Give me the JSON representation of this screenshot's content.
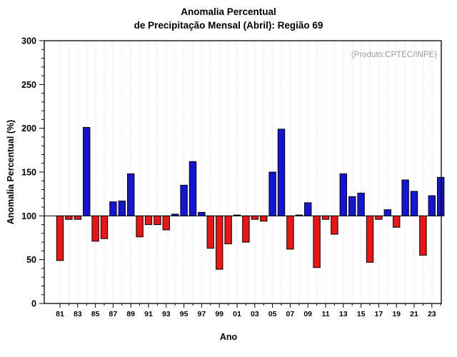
{
  "title": {
    "line1": "Anomalia Percentual",
    "line2": "de Precipitação Mensal (Abril): Região 69"
  },
  "annotation": "(Produto:CPTEC/INPE)",
  "chart_data": {
    "type": "bar",
    "title": "Anomalia Percentual de Precipitação Mensal (Abril): Região 69",
    "xlabel": "Ano",
    "ylabel": "Anomalia Percentual (%)",
    "ylim": [
      0,
      300
    ],
    "yticks": [
      0,
      50,
      100,
      150,
      200,
      250,
      300
    ],
    "y_minor_step": 10,
    "baseline": 100,
    "grid": "vertical-dotted",
    "x_ticks": [
      "81",
      "83",
      "85",
      "87",
      "89",
      "91",
      "93",
      "95",
      "97",
      "99",
      "01",
      "03",
      "05",
      "07",
      "09",
      "11",
      "13",
      "15",
      "17",
      "19",
      "21",
      "23"
    ],
    "years": [
      1981,
      1982,
      1983,
      1984,
      1985,
      1986,
      1987,
      1988,
      1989,
      1990,
      1991,
      1992,
      1993,
      1994,
      1995,
      1996,
      1997,
      1998,
      1999,
      2000,
      2001,
      2002,
      2003,
      2004,
      2005,
      2006,
      2007,
      2008,
      2009,
      2010,
      2011,
      2012,
      2013,
      2014,
      2015,
      2016,
      2017,
      2018,
      2019,
      2020,
      2021,
      2022,
      2023,
      2024
    ],
    "values": [
      49,
      96,
      96,
      201,
      71,
      74,
      116,
      117,
      148,
      76,
      90,
      90,
      84,
      102,
      135,
      162,
      104,
      63,
      39,
      68,
      101,
      70,
      96,
      94,
      150,
      199,
      62,
      101,
      115,
      41,
      96,
      79,
      148,
      122,
      126,
      47,
      96,
      107,
      87,
      141,
      128,
      55,
      123,
      144
    ],
    "color_above": "#1515d6",
    "color_below": "#ea1515",
    "bar_edge_color": "#000000",
    "frame_color": "#000000",
    "gridline_color": "#cccccc"
  }
}
